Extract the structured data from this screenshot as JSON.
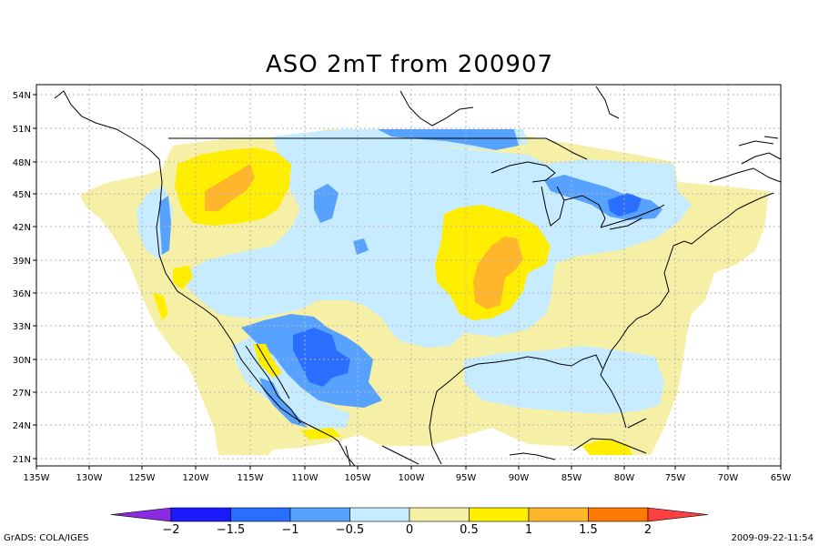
{
  "title": "ASO 2mT from 200907",
  "footer": {
    "left": "GrADS: COLA/IGES",
    "right": "2009-09-22-11:54"
  },
  "map": {
    "lat_ticks": [
      "54N",
      "51N",
      "48N",
      "45N",
      "42N",
      "39N",
      "36N",
      "33N",
      "30N",
      "27N",
      "24N",
      "21N"
    ],
    "lon_ticks": [
      "135W",
      "130W",
      "125W",
      "120W",
      "115W",
      "110W",
      "105W",
      "100W",
      "95W",
      "90W",
      "85W",
      "80W",
      "75W",
      "70W",
      "65W"
    ],
    "grid": true
  },
  "colorbar": {
    "labels": [
      "-2",
      "-1.5",
      "-1",
      "-0.5",
      "0",
      "0.5",
      "1",
      "1.5",
      "2"
    ],
    "colors": [
      "#8a2be2",
      "#1b1bff",
      "#2a6eff",
      "#57a2ff",
      "#c7ecff",
      "#f6f0a6",
      "#ffee00",
      "#ffb62a",
      "#ff7a00",
      "#ff4040"
    ]
  },
  "colors": {
    "coast": "#000000",
    "grid": "#b5b5b5"
  }
}
